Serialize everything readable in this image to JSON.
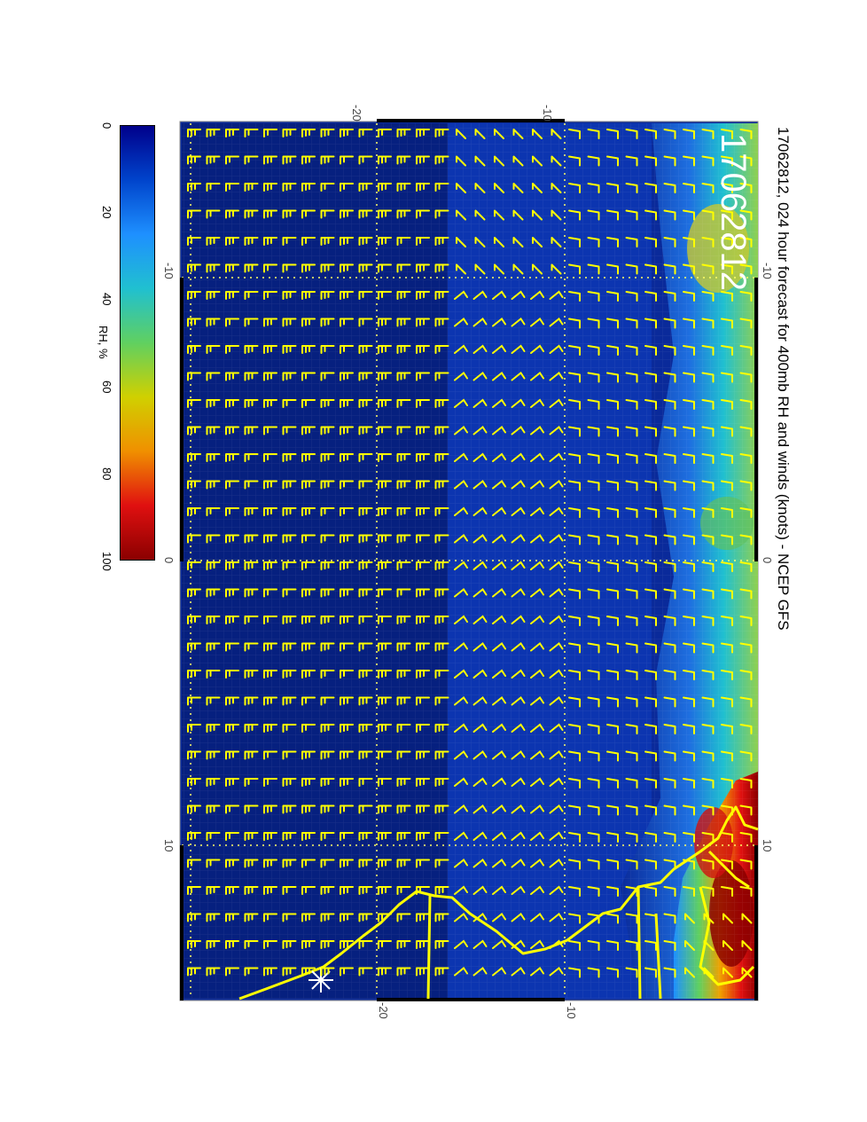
{
  "title": "17062812, 024 hour forecast for 400mb RH and winds (knots) - NCEP GFS",
  "datestamp": "17062812",
  "colorbar": {
    "label": "RH, %",
    "ticks": [
      "0",
      "20",
      "40",
      "60",
      "80",
      "100"
    ],
    "stops": [
      "#00008b",
      "#0044cc",
      "#1e90ff",
      "#20c0d0",
      "#60d060",
      "#d0d000",
      "#f09000",
      "#e01010",
      "#8b0000"
    ]
  },
  "axes": {
    "top_labels": [
      "-20",
      "-10"
    ],
    "bottom_labels": [
      "-20",
      "-10"
    ],
    "left_labels": [
      "-10",
      "0",
      "10"
    ],
    "right_labels": [
      "-10",
      "0",
      "10"
    ]
  },
  "colors": {
    "background_rh": "#0a2a9a",
    "barbs": "#ffff00",
    "coast": "#ffff00",
    "grid": "#ffff66"
  }
}
